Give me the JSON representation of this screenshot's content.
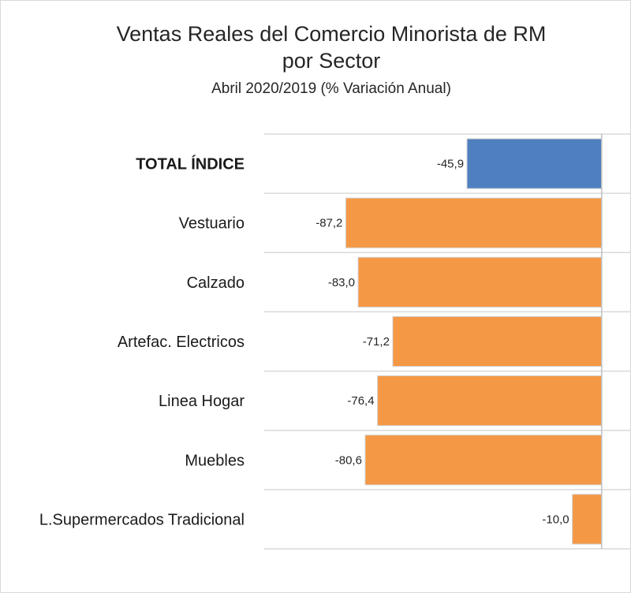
{
  "chart_data": {
    "type": "bar",
    "orientation": "horizontal",
    "title": "Ventas Reales del Comercio Minorista de RM",
    "title_line2": "por Sector",
    "subtitle": "Abril 2020/2019 (% Variación Anual)",
    "categories": [
      "TOTAL ÍNDICE",
      "Vestuario",
      "Calzado",
      "Artefac. Electricos",
      "Linea Hogar",
      "Muebles",
      "L.Supermercados Tradicional"
    ],
    "values": [
      -45.9,
      -87.2,
      -83.0,
      -71.2,
      -76.4,
      -80.6,
      -10.0
    ],
    "value_labels": [
      "-45,9",
      "-87,2",
      "-83,0",
      "-71,2",
      "-76,4",
      "-80,6",
      "-10,0"
    ],
    "colors": [
      "#4f7fbf",
      "#f59845",
      "#f59845",
      "#f59845",
      "#f59845",
      "#f59845",
      "#f59845"
    ],
    "xlim": [
      -115,
      10
    ],
    "grid": "horizontal category separators",
    "legend": "none"
  }
}
